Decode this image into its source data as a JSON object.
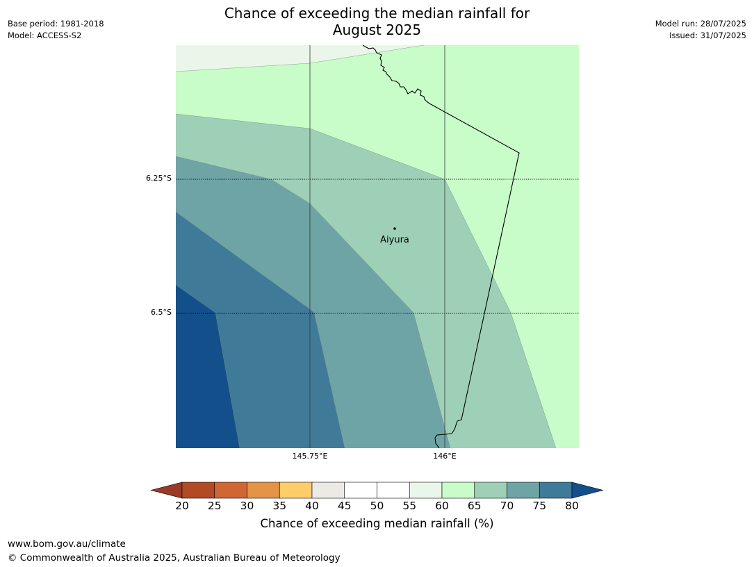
{
  "title": {
    "line1": "Chance of exceeding the median rainfall for",
    "line2": "August 2025"
  },
  "meta_left": {
    "base_period": "Base period: 1981-2018",
    "model": "Model: ACCESS-S2"
  },
  "meta_right": {
    "model_run": "Model run: 28/07/2025",
    "issued": "Issued: 31/07/2025"
  },
  "map": {
    "latitude_labels": [
      "6.25°S",
      "6.5°S"
    ],
    "longitude_labels": [
      "145.75°E",
      "146°E"
    ],
    "place_label": "Aiyura",
    "region_fill_colors": {
      "gt80": "#134f8a",
      "75_80": "#3f7a99",
      "70_75": "#6fa4a6",
      "65_70": "#9ed0b8",
      "60_65": "#c8fcc8",
      "55_60": "#eaf6ea"
    },
    "grid_color": "#000000",
    "border_color": "#000000"
  },
  "colorbar": {
    "title": "Chance of exceeding median rainfall (%)",
    "ticks": [
      "20",
      "25",
      "30",
      "35",
      "40",
      "45",
      "50",
      "55",
      "60",
      "65",
      "70",
      "75",
      "80"
    ],
    "under_color": "#9a3a24",
    "over_color": "#134f8a",
    "segment_colors": [
      "#b24a25",
      "#cf6633",
      "#e39447",
      "#ffcd69",
      "#ede9e4",
      "#ffffff",
      "#ffffff",
      "#eaf6ea",
      "#c8fcc8",
      "#9ed0b8",
      "#6fa4a6",
      "#3f7a99"
    ]
  },
  "footer": {
    "url": "www.bom.gov.au/climate",
    "copyright": "© Commonwealth of Australia 2025, Australian Bureau of Meteorology"
  }
}
